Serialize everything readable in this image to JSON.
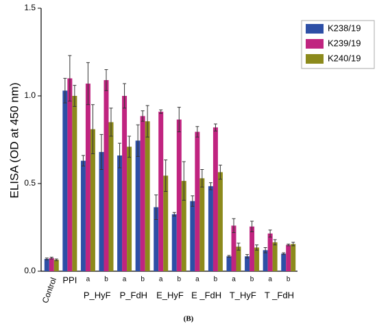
{
  "chart_data": {
    "type": "bar",
    "y_label": "ELISA (OD at 450 nm)",
    "caption": "(B)",
    "categories": [
      "Control",
      "PPI",
      "a",
      "b",
      "a",
      "b",
      "a",
      "b",
      "a",
      "b",
      "a",
      "b",
      "a",
      "b"
    ],
    "group_labels": [
      "P_HyF",
      "P_FdH",
      "E_HyF",
      "E _FdH",
      "T_HyF",
      "T _FdH"
    ],
    "series": [
      {
        "name": "K238/19",
        "color": "#2d4fa6",
        "values": [
          0.07,
          1.03,
          0.63,
          0.68,
          0.66,
          0.745,
          0.365,
          0.325,
          0.4,
          0.485,
          0.085,
          0.085,
          0.12,
          0.1
        ],
        "errors": [
          0.005,
          0.07,
          0.03,
          0.1,
          0.07,
          0.09,
          0.07,
          0.01,
          0.03,
          0.02,
          0.005,
          0.01,
          0.015,
          0.005
        ]
      },
      {
        "name": "K239/19",
        "color": "#c02480",
        "values": [
          0.075,
          1.1,
          1.07,
          1.09,
          1.0,
          0.885,
          0.91,
          0.865,
          0.795,
          0.82,
          0.26,
          0.255,
          0.215,
          0.15
        ],
        "errors": [
          0.005,
          0.13,
          0.12,
          0.06,
          0.07,
          0.03,
          0.01,
          0.07,
          0.03,
          0.02,
          0.04,
          0.03,
          0.02,
          0.005
        ]
      },
      {
        "name": "K240/19",
        "color": "#8c8a1c",
        "values": [
          0.065,
          1.0,
          0.81,
          0.85,
          0.71,
          0.855,
          0.545,
          0.515,
          0.53,
          0.565,
          0.14,
          0.135,
          0.165,
          0.155
        ],
        "errors": [
          0.005,
          0.06,
          0.14,
          0.08,
          0.06,
          0.09,
          0.09,
          0.11,
          0.05,
          0.04,
          0.02,
          0.015,
          0.015,
          0.01
        ]
      }
    ],
    "ylim": [
      0,
      1.5
    ],
    "yticks": [
      {
        "value": 0,
        "label": "0.0"
      },
      0.5,
      {
        "value": 1,
        "label": "1.0"
      },
      1.5
    ],
    "legend": "upper right"
  }
}
